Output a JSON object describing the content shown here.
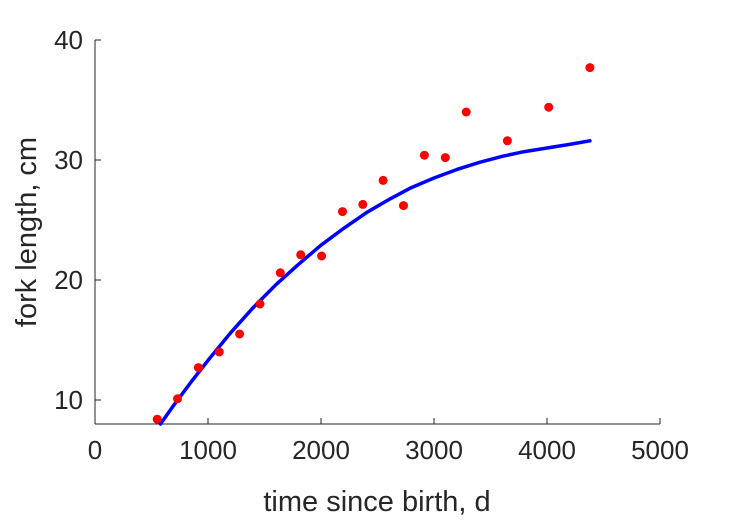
{
  "chart_data": {
    "type": "scatter",
    "xlabel": "time since birth, d",
    "ylabel": "fork length, cm",
    "xlim": [
      0,
      5000
    ],
    "ylim": [
      8,
      40
    ],
    "xticks": [
      "0",
      "1000",
      "2000",
      "3000",
      "4000",
      "5000"
    ],
    "yticks": [
      "10",
      "20",
      "30",
      "40"
    ],
    "grid": false,
    "series": [
      {
        "kind": "scatter",
        "color": "#ff0000",
        "points": [
          [
            550,
            8.4
          ],
          [
            730,
            10.1
          ],
          [
            915,
            12.7
          ],
          [
            1100,
            14.0
          ],
          [
            1280,
            15.5
          ],
          [
            1460,
            18.0
          ],
          [
            1640,
            20.6
          ],
          [
            1820,
            22.1
          ],
          [
            2005,
            22.0
          ],
          [
            2190,
            25.7
          ],
          [
            2370,
            26.3
          ],
          [
            2550,
            28.3
          ],
          [
            2730,
            26.2
          ],
          [
            2915,
            30.4
          ],
          [
            3100,
            30.2
          ],
          [
            3285,
            34.0
          ],
          [
            3650,
            31.6
          ],
          [
            4015,
            34.4
          ],
          [
            4380,
            37.7
          ]
        ]
      },
      {
        "kind": "line",
        "color": "#0000ff",
        "points": [
          [
            580,
            8.0
          ],
          [
            700,
            9.6
          ],
          [
            850,
            11.5
          ],
          [
            1000,
            13.3
          ],
          [
            1200,
            15.6
          ],
          [
            1400,
            17.7
          ],
          [
            1600,
            19.6
          ],
          [
            1800,
            21.3
          ],
          [
            2000,
            22.9
          ],
          [
            2200,
            24.3
          ],
          [
            2400,
            25.6
          ],
          [
            2600,
            26.7
          ],
          [
            2800,
            27.7
          ],
          [
            3000,
            28.5
          ],
          [
            3200,
            29.2
          ],
          [
            3400,
            29.8
          ],
          [
            3600,
            30.3
          ],
          [
            3800,
            30.7
          ],
          [
            4000,
            31.0
          ],
          [
            4200,
            31.3
          ],
          [
            4380,
            31.6
          ]
        ]
      }
    ]
  }
}
